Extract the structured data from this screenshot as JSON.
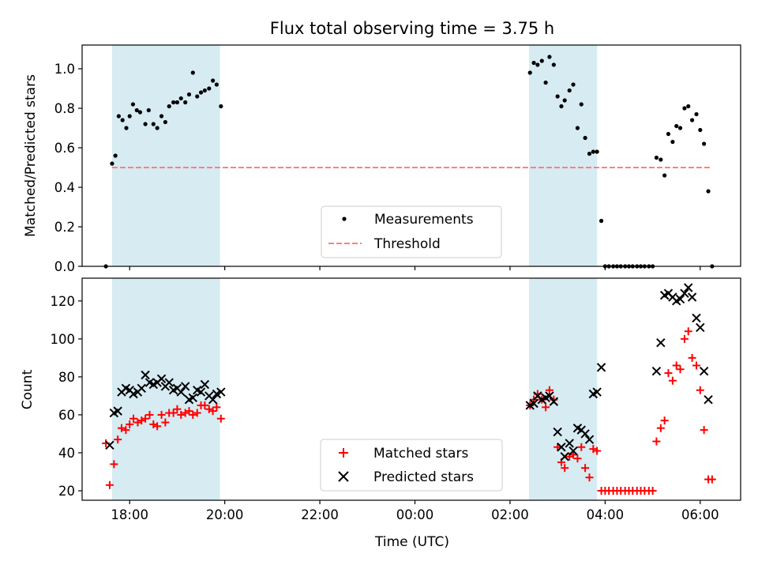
{
  "figure": {
    "title": "Flux total observing time = 3.75 h"
  },
  "colors": {
    "shade": "#add8e6",
    "threshold": "#ff7f7f",
    "measurements": "#000000",
    "matched": "#ff0000",
    "predicted": "#000000"
  },
  "chart_data": [
    {
      "id": "ratio",
      "type": "scatter",
      "ylabel": "Matched/Predicted stars",
      "xlim": [
        17.0,
        30.85
      ],
      "ylim": [
        0.0,
        1.12
      ],
      "yticks": [
        0.0,
        0.2,
        0.4,
        0.6,
        0.8,
        1.0
      ],
      "ytick_labels": [
        "0.0",
        "0.2",
        "0.4",
        "0.6",
        "0.8",
        "1.0"
      ],
      "shaded_intervals": [
        [
          17.63,
          19.9
        ],
        [
          26.4,
          27.83
        ]
      ],
      "legend": {
        "placement": "lower center",
        "entries": [
          "Measurements",
          "Threshold"
        ]
      },
      "threshold": {
        "name": "Threshold",
        "y": 0.5,
        "x_range": [
          17.63,
          30.2
        ]
      },
      "series": [
        {
          "name": "Measurements",
          "marker": "dot",
          "points": [
            [
              17.5,
              0.0
            ],
            [
              17.63,
              0.52
            ],
            [
              17.7,
              0.56
            ],
            [
              17.77,
              0.76
            ],
            [
              17.85,
              0.74
            ],
            [
              17.93,
              0.7
            ],
            [
              18.0,
              0.76
            ],
            [
              18.07,
              0.82
            ],
            [
              18.15,
              0.79
            ],
            [
              18.22,
              0.78
            ],
            [
              18.33,
              0.72
            ],
            [
              18.4,
              0.79
            ],
            [
              18.5,
              0.72
            ],
            [
              18.58,
              0.7
            ],
            [
              18.67,
              0.76
            ],
            [
              18.75,
              0.73
            ],
            [
              18.83,
              0.81
            ],
            [
              18.92,
              0.83
            ],
            [
              19.0,
              0.83
            ],
            [
              19.08,
              0.85
            ],
            [
              19.17,
              0.83
            ],
            [
              19.25,
              0.87
            ],
            [
              19.33,
              0.98
            ],
            [
              19.42,
              0.86
            ],
            [
              19.5,
              0.88
            ],
            [
              19.58,
              0.89
            ],
            [
              19.67,
              0.9
            ],
            [
              19.75,
              0.94
            ],
            [
              19.83,
              0.92
            ],
            [
              19.92,
              0.81
            ],
            [
              26.42,
              0.98
            ],
            [
              26.5,
              1.03
            ],
            [
              26.58,
              1.02
            ],
            [
              26.67,
              1.04
            ],
            [
              26.75,
              0.93
            ],
            [
              26.83,
              1.06
            ],
            [
              26.92,
              1.02
            ],
            [
              27.0,
              0.86
            ],
            [
              27.08,
              0.81
            ],
            [
              27.15,
              0.84
            ],
            [
              27.25,
              0.89
            ],
            [
              27.33,
              0.92
            ],
            [
              27.42,
              0.7
            ],
            [
              27.5,
              0.82
            ],
            [
              27.58,
              0.65
            ],
            [
              27.67,
              0.57
            ],
            [
              27.75,
              0.58
            ],
            [
              27.83,
              0.58
            ],
            [
              27.92,
              0.23
            ],
            [
              28.0,
              0.0
            ],
            [
              28.08,
              0.0
            ],
            [
              28.17,
              0.0
            ],
            [
              28.25,
              0.0
            ],
            [
              28.33,
              0.0
            ],
            [
              28.42,
              0.0
            ],
            [
              28.5,
              0.0
            ],
            [
              28.58,
              0.0
            ],
            [
              28.67,
              0.0
            ],
            [
              28.75,
              0.0
            ],
            [
              28.83,
              0.0
            ],
            [
              28.92,
              0.0
            ],
            [
              29.0,
              0.0
            ],
            [
              29.08,
              0.55
            ],
            [
              29.17,
              0.54
            ],
            [
              29.25,
              0.46
            ],
            [
              29.33,
              0.67
            ],
            [
              29.42,
              0.63
            ],
            [
              29.5,
              0.71
            ],
            [
              29.58,
              0.7
            ],
            [
              29.67,
              0.8
            ],
            [
              29.75,
              0.81
            ],
            [
              29.83,
              0.74
            ],
            [
              29.92,
              0.77
            ],
            [
              30.0,
              0.69
            ],
            [
              30.08,
              0.62
            ],
            [
              30.17,
              0.38
            ],
            [
              30.25,
              0.0
            ]
          ]
        }
      ]
    },
    {
      "id": "counts",
      "type": "scatter",
      "xlabel": "Time (UTC)",
      "ylabel": "Count",
      "xlim": [
        17.0,
        30.85
      ],
      "ylim": [
        15,
        132
      ],
      "xticks": [
        18,
        20,
        22,
        24,
        26,
        28,
        30
      ],
      "xtick_labels": [
        "18:00",
        "20:00",
        "22:00",
        "00:00",
        "02:00",
        "04:00",
        "06:00"
      ],
      "yticks": [
        20,
        40,
        60,
        80,
        100,
        120
      ],
      "ytick_labels": [
        "20",
        "40",
        "60",
        "80",
        "100",
        "120"
      ],
      "shaded_intervals": [
        [
          17.63,
          19.9
        ],
        [
          26.4,
          27.83
        ]
      ],
      "legend": {
        "placement": "lower center",
        "entries": [
          "Matched stars",
          "Predicted stars"
        ]
      },
      "series": [
        {
          "name": "Matched stars",
          "marker": "plus",
          "points": [
            [
              17.5,
              45
            ],
            [
              17.58,
              23
            ],
            [
              17.67,
              34
            ],
            [
              17.75,
              47
            ],
            [
              17.83,
              53
            ],
            [
              17.92,
              52
            ],
            [
              18.0,
              55
            ],
            [
              18.08,
              58
            ],
            [
              18.17,
              56
            ],
            [
              18.25,
              57
            ],
            [
              18.33,
              58
            ],
            [
              18.42,
              60
            ],
            [
              18.5,
              55
            ],
            [
              18.58,
              54
            ],
            [
              18.67,
              60
            ],
            [
              18.75,
              56
            ],
            [
              18.83,
              61
            ],
            [
              18.92,
              61
            ],
            [
              19.0,
              63
            ],
            [
              19.08,
              60
            ],
            [
              19.17,
              61
            ],
            [
              19.25,
              62
            ],
            [
              19.33,
              60
            ],
            [
              19.42,
              61
            ],
            [
              19.5,
              65
            ],
            [
              19.58,
              65
            ],
            [
              19.67,
              63
            ],
            [
              19.75,
              62
            ],
            [
              19.83,
              64
            ],
            [
              19.92,
              58
            ],
            [
              26.42,
              65
            ],
            [
              26.5,
              68
            ],
            [
              26.58,
              71
            ],
            [
              26.67,
              68
            ],
            [
              26.75,
              64
            ],
            [
              26.83,
              73
            ],
            [
              26.92,
              68
            ],
            [
              27.0,
              43
            ],
            [
              27.08,
              35
            ],
            [
              27.15,
              32
            ],
            [
              27.25,
              38
            ],
            [
              27.33,
              39
            ],
            [
              27.42,
              37
            ],
            [
              27.5,
              43
            ],
            [
              27.58,
              32
            ],
            [
              27.67,
              27
            ],
            [
              27.75,
              42
            ],
            [
              27.83,
              41
            ],
            [
              27.92,
              20
            ],
            [
              28.0,
              20
            ],
            [
              28.08,
              20
            ],
            [
              28.17,
              20
            ],
            [
              28.25,
              20
            ],
            [
              28.33,
              20
            ],
            [
              28.42,
              20
            ],
            [
              28.5,
              20
            ],
            [
              28.58,
              20
            ],
            [
              28.67,
              20
            ],
            [
              28.75,
              20
            ],
            [
              28.83,
              20
            ],
            [
              28.92,
              20
            ],
            [
              29.0,
              20
            ],
            [
              29.08,
              46
            ],
            [
              29.17,
              53
            ],
            [
              29.25,
              57
            ],
            [
              29.33,
              82
            ],
            [
              29.42,
              78
            ],
            [
              29.5,
              86
            ],
            [
              29.58,
              84
            ],
            [
              29.67,
              100
            ],
            [
              29.75,
              104
            ],
            [
              29.83,
              90
            ],
            [
              29.92,
              86
            ],
            [
              30.0,
              73
            ],
            [
              30.08,
              52
            ],
            [
              30.17,
              26
            ],
            [
              30.25,
              26
            ]
          ]
        },
        {
          "name": "Predicted stars",
          "marker": "x",
          "points": [
            [
              17.58,
              44
            ],
            [
              17.67,
              61
            ],
            [
              17.75,
              62
            ],
            [
              17.83,
              72
            ],
            [
              17.92,
              74
            ],
            [
              18.0,
              73
            ],
            [
              18.08,
              71
            ],
            [
              18.17,
              72
            ],
            [
              18.25,
              74
            ],
            [
              18.33,
              81
            ],
            [
              18.42,
              77
            ],
            [
              18.5,
              76
            ],
            [
              18.58,
              77
            ],
            [
              18.67,
              79
            ],
            [
              18.75,
              75
            ],
            [
              18.83,
              77
            ],
            [
              18.92,
              73
            ],
            [
              19.0,
              74
            ],
            [
              19.08,
              72
            ],
            [
              19.17,
              75
            ],
            [
              19.25,
              68
            ],
            [
              19.33,
              69
            ],
            [
              19.42,
              73
            ],
            [
              19.5,
              72
            ],
            [
              19.58,
              76
            ],
            [
              19.67,
              70
            ],
            [
              19.75,
              68
            ],
            [
              19.83,
              71
            ],
            [
              19.92,
              72
            ],
            [
              26.42,
              65
            ],
            [
              26.5,
              66
            ],
            [
              26.58,
              70
            ],
            [
              26.67,
              68
            ],
            [
              26.75,
              69
            ],
            [
              26.83,
              70
            ],
            [
              26.92,
              67
            ],
            [
              27.0,
              51
            ],
            [
              27.08,
              43
            ],
            [
              27.15,
              38
            ],
            [
              27.25,
              45
            ],
            [
              27.33,
              41
            ],
            [
              27.42,
              53
            ],
            [
              27.5,
              52
            ],
            [
              27.58,
              50
            ],
            [
              27.67,
              47
            ],
            [
              27.75,
              71
            ],
            [
              27.83,
              72
            ],
            [
              27.92,
              85
            ],
            [
              29.08,
              83
            ],
            [
              29.17,
              98
            ],
            [
              29.25,
              123
            ],
            [
              29.33,
              124
            ],
            [
              29.42,
              122
            ],
            [
              29.5,
              120
            ],
            [
              29.58,
              121
            ],
            [
              29.67,
              124
            ],
            [
              29.75,
              127
            ],
            [
              29.83,
              122
            ],
            [
              29.92,
              111
            ],
            [
              30.0,
              106
            ],
            [
              30.08,
              83
            ],
            [
              30.17,
              68
            ]
          ]
        }
      ]
    }
  ]
}
